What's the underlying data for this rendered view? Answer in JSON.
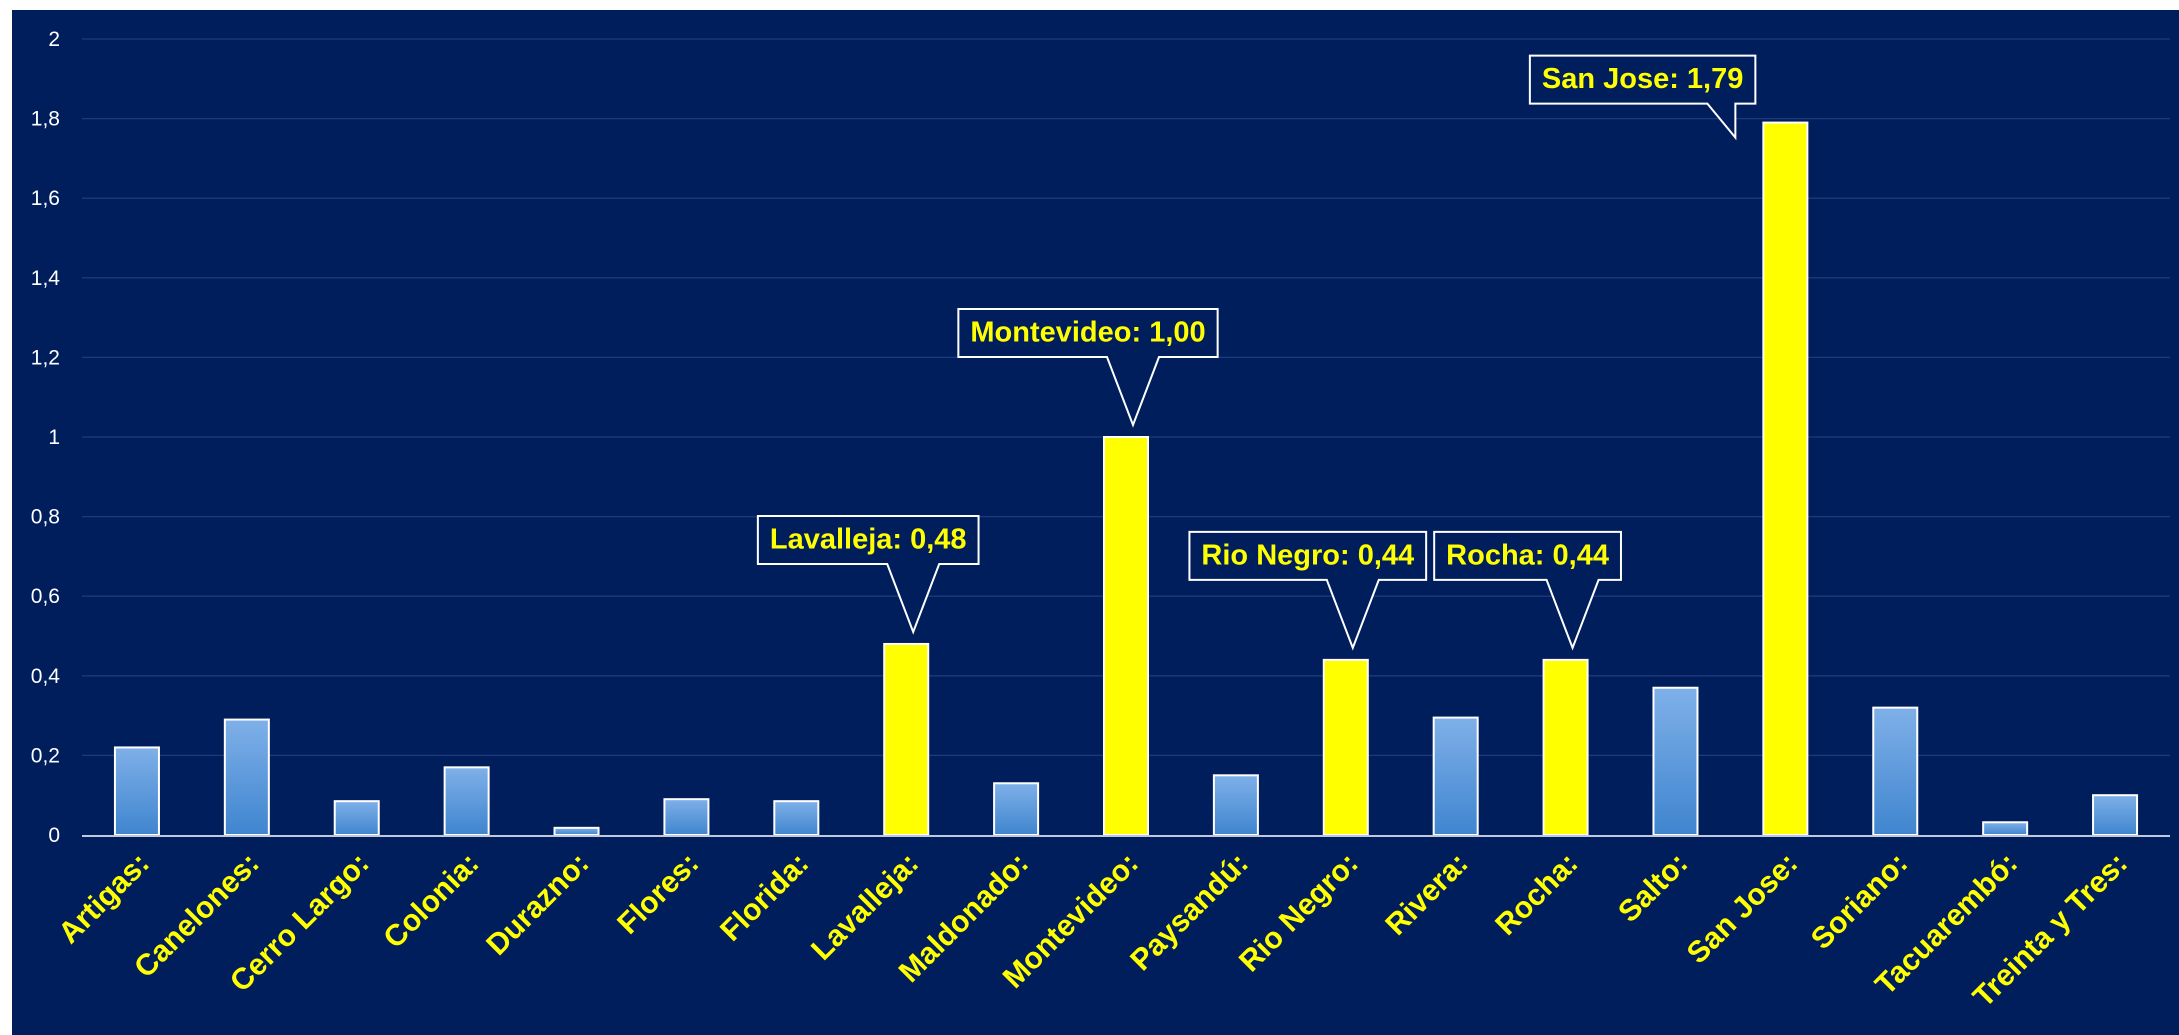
{
  "colors": {
    "background": "#001E5C",
    "gridline": "#1D3A7A",
    "axis": "#BFC8DC",
    "bar_default_top": "#7FB0E8",
    "bar_default_bottom": "#3F85CF",
    "bar_highlight": "#FFFF00",
    "bar_border": "#FFFFFF",
    "label_text": "#FFFF00",
    "tick_text": "#FFFFFF"
  },
  "chart_data": {
    "type": "bar",
    "title": "",
    "xlabel": "",
    "ylabel": "",
    "ylim": [
      0,
      2
    ],
    "y_ticks": [
      "0",
      "0,2",
      "0,4",
      "0,6",
      "0,8",
      "1",
      "1,2",
      "1,4",
      "1,6",
      "1,8",
      "2"
    ],
    "y_tick_values": [
      0,
      0.2,
      0.4,
      0.6,
      0.8,
      1.0,
      1.2,
      1.4,
      1.6,
      1.8,
      2.0
    ],
    "grid": true,
    "legend": "none",
    "categories": [
      "Artigas:",
      "Canelones:",
      "Cerro Largo:",
      "Colonia:",
      "Durazno:",
      "Flores:",
      "Florida:",
      "Lavalleja:",
      "Maldonado:",
      "Montevideo:",
      "Paysandú:",
      "Rio Negro:",
      "Rivera:",
      "Rocha:",
      "Salto:",
      "San Jose:",
      "Soriano:",
      "Tacuarembó:",
      "Treinta y Tres:"
    ],
    "values": [
      0.22,
      0.29,
      0.085,
      0.17,
      0.018,
      0.09,
      0.085,
      0.48,
      0.13,
      1.0,
      0.15,
      0.44,
      0.295,
      0.44,
      0.37,
      1.79,
      0.32,
      0.032,
      0.1
    ],
    "highlighted": [
      false,
      false,
      false,
      false,
      false,
      false,
      false,
      true,
      false,
      true,
      false,
      true,
      false,
      true,
      false,
      true,
      false,
      false,
      false
    ],
    "callouts": [
      {
        "category_index": 7,
        "text": "Lavalleja:  0,48",
        "style": "straight"
      },
      {
        "category_index": 9,
        "text": "Montevideo:  1,00",
        "style": "straight"
      },
      {
        "category_index": 11,
        "text": "Rio Negro:  0,44",
        "style": "straight"
      },
      {
        "category_index": 13,
        "text": "Rocha:  0,44",
        "style": "straight"
      },
      {
        "category_index": 15,
        "text": "San Jose:  1,79",
        "style": "angled"
      }
    ]
  }
}
